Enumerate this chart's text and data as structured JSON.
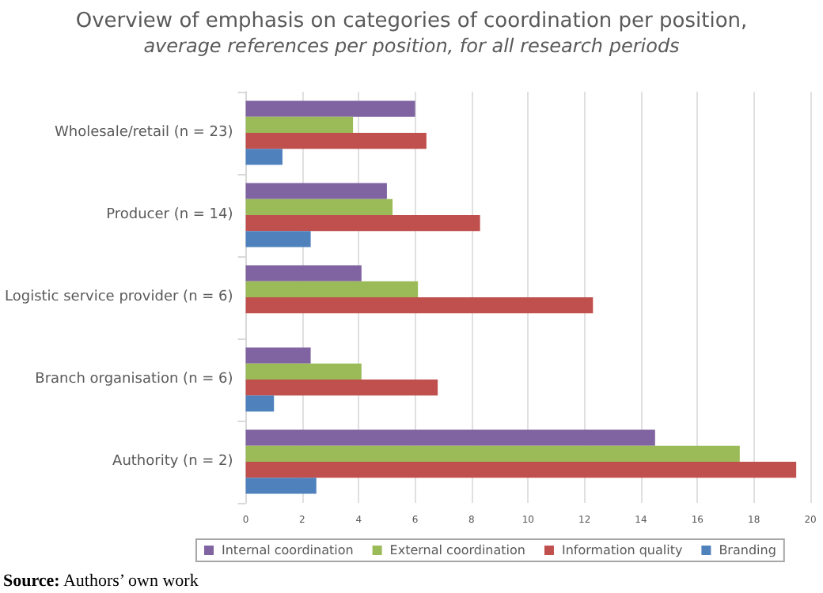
{
  "chart_data": {
    "type": "bar",
    "orientation": "horizontal",
    "title": "Overview of emphasis on categories of coordination per position,",
    "subtitle": "average references per position, for all research periods",
    "categories": [
      "Wholesale/retail (n = 23)",
      "Producer (n = 14)",
      "Logistic service provider (n = 6)",
      "Branch organisation (n = 6)",
      "Authority (n = 2)"
    ],
    "series": [
      {
        "name": "Internal coordination",
        "color": "#8064a2",
        "values": [
          6.0,
          5.0,
          4.1,
          2.3,
          14.5
        ]
      },
      {
        "name": "External coordination",
        "color": "#9bbb59",
        "values": [
          3.8,
          5.2,
          6.1,
          4.1,
          17.5
        ]
      },
      {
        "name": "Information quality",
        "color": "#c0504d",
        "values": [
          6.4,
          8.3,
          12.3,
          6.8,
          19.5
        ]
      },
      {
        "name": "Branding",
        "color": "#4f81bd",
        "values": [
          1.3,
          2.3,
          0,
          1.0,
          2.5
        ]
      }
    ],
    "xlim": [
      0,
      20
    ],
    "xticks": [
      0,
      2,
      4,
      6,
      8,
      10,
      12,
      14,
      16,
      18,
      20
    ],
    "grid": "x",
    "legend": "bottom",
    "annotations": [
      "Source: Authors’ own work"
    ]
  }
}
